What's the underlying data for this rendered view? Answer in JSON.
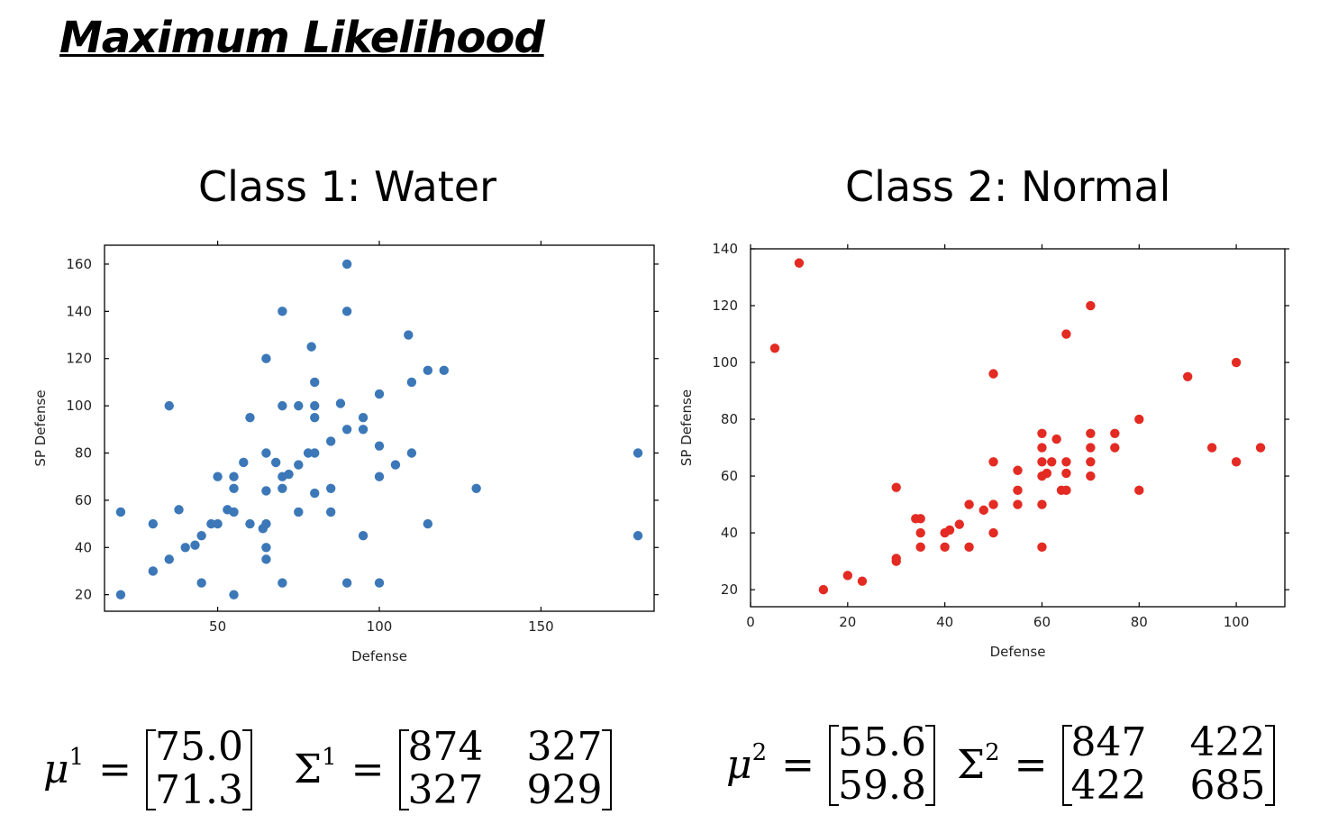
{
  "title": "Maximum Likelihood",
  "chart_data": [
    {
      "type": "scatter",
      "title": "Class 1: Water",
      "xlabel": "Defense",
      "ylabel": "SP Defense",
      "xlim": [
        15,
        185
      ],
      "ylim": [
        13,
        168
      ],
      "xticks": [
        50,
        100,
        150
      ],
      "yticks": [
        20,
        40,
        60,
        80,
        100,
        120,
        140,
        160
      ],
      "color": "#3c78b8",
      "grid": false,
      "points": [
        [
          20,
          20
        ],
        [
          20,
          55
        ],
        [
          30,
          30
        ],
        [
          30,
          50
        ],
        [
          35,
          35
        ],
        [
          35,
          100
        ],
        [
          38,
          56
        ],
        [
          40,
          40
        ],
        [
          43,
          41
        ],
        [
          45,
          45
        ],
        [
          45,
          25
        ],
        [
          48,
          50
        ],
        [
          50,
          70
        ],
        [
          50,
          50
        ],
        [
          53,
          56
        ],
        [
          55,
          65
        ],
        [
          55,
          55
        ],
        [
          55,
          70
        ],
        [
          55,
          20
        ],
        [
          58,
          76
        ],
        [
          60,
          95
        ],
        [
          60,
          50
        ],
        [
          64,
          48
        ],
        [
          65,
          50
        ],
        [
          65,
          40
        ],
        [
          65,
          35
        ],
        [
          65,
          64
        ],
        [
          65,
          80
        ],
        [
          65,
          120
        ],
        [
          68,
          76
        ],
        [
          70,
          70
        ],
        [
          70,
          65
        ],
        [
          70,
          140
        ],
        [
          70,
          100
        ],
        [
          70,
          25
        ],
        [
          72,
          71
        ],
        [
          75,
          75
        ],
        [
          75,
          100
        ],
        [
          75,
          55
        ],
        [
          78,
          80
        ],
        [
          79,
          125
        ],
        [
          80,
          100
        ],
        [
          80,
          95
        ],
        [
          80,
          80
        ],
        [
          80,
          110
        ],
        [
          80,
          63
        ],
        [
          85,
          85
        ],
        [
          85,
          65
        ],
        [
          85,
          55
        ],
        [
          88,
          101
        ],
        [
          90,
          160
        ],
        [
          90,
          140
        ],
        [
          90,
          90
        ],
        [
          90,
          25
        ],
        [
          95,
          95
        ],
        [
          95,
          90
        ],
        [
          95,
          45
        ],
        [
          100,
          105
        ],
        [
          100,
          83
        ],
        [
          100,
          70
        ],
        [
          100,
          25
        ],
        [
          105,
          75
        ],
        [
          109,
          130
        ],
        [
          110,
          110
        ],
        [
          110,
          80
        ],
        [
          115,
          115
        ],
        [
          115,
          50
        ],
        [
          120,
          115
        ],
        [
          130,
          65
        ],
        [
          180,
          80
        ],
        [
          180,
          45
        ]
      ]
    },
    {
      "type": "scatter",
      "title": "Class 2: Normal",
      "xlabel": "Defense",
      "ylabel": "SP Defense",
      "xlim": [
        0,
        110
      ],
      "ylim": [
        14,
        140
      ],
      "xticks": [
        0,
        20,
        40,
        60,
        80,
        100
      ],
      "yticks": [
        20,
        40,
        60,
        80,
        100,
        120,
        140
      ],
      "color": "#e32b23",
      "grid": false,
      "points": [
        [
          5,
          105
        ],
        [
          10,
          135
        ],
        [
          15,
          20
        ],
        [
          20,
          25
        ],
        [
          23,
          23
        ],
        [
          30,
          56
        ],
        [
          30,
          31
        ],
        [
          30,
          30
        ],
        [
          34,
          45
        ],
        [
          35,
          45
        ],
        [
          35,
          40
        ],
        [
          35,
          35
        ],
        [
          40,
          35
        ],
        [
          40,
          40
        ],
        [
          41,
          41
        ],
        [
          43,
          43
        ],
        [
          45,
          50
        ],
        [
          45,
          35
        ],
        [
          48,
          48
        ],
        [
          50,
          96
        ],
        [
          50,
          65
        ],
        [
          50,
          50
        ],
        [
          50,
          40
        ],
        [
          55,
          62
        ],
        [
          55,
          55
        ],
        [
          55,
          50
        ],
        [
          60,
          75
        ],
        [
          60,
          70
        ],
        [
          60,
          65
        ],
        [
          60,
          60
        ],
        [
          60,
          50
        ],
        [
          60,
          35
        ],
        [
          61,
          61
        ],
        [
          62,
          65
        ],
        [
          63,
          73
        ],
        [
          64,
          55
        ],
        [
          65,
          110
        ],
        [
          65,
          65
        ],
        [
          65,
          61
        ],
        [
          65,
          55
        ],
        [
          70,
          120
        ],
        [
          70,
          75
        ],
        [
          70,
          70
        ],
        [
          70,
          65
        ],
        [
          70,
          60
        ],
        [
          75,
          75
        ],
        [
          75,
          70
        ],
        [
          80,
          80
        ],
        [
          80,
          55
        ],
        [
          90,
          95
        ],
        [
          95,
          70
        ],
        [
          100,
          100
        ],
        [
          100,
          65
        ],
        [
          105,
          70
        ]
      ]
    }
  ],
  "equations": {
    "class1": {
      "mu_symbol": "μ",
      "mu_sup": "1",
      "equals": "=",
      "mu": [
        "75.0",
        "71.3"
      ],
      "sigma_symbol": "Σ",
      "sigma_sup": "1",
      "sigma": [
        [
          "874",
          "327"
        ],
        [
          "327",
          "929"
        ]
      ]
    },
    "class2": {
      "mu_symbol": "μ",
      "mu_sup": "2",
      "equals": "=",
      "mu": [
        "55.6",
        "59.8"
      ],
      "sigma_symbol": "Σ",
      "sigma_sup": "2",
      "sigma": [
        [
          "847",
          "422"
        ],
        [
          "422",
          "685"
        ]
      ]
    }
  }
}
